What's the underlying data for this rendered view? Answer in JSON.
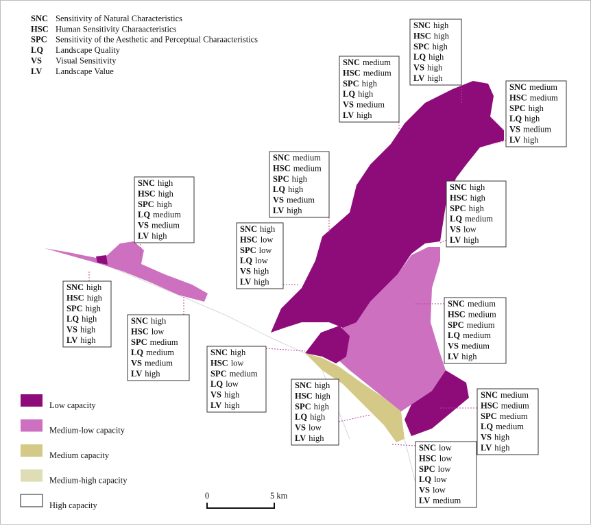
{
  "abbreviations": [
    {
      "abbr": "SNC",
      "text": "Sensitivity of Natural Characteristics"
    },
    {
      "abbr": "HSC",
      "text": "Human Sensitivity Charaacteristics"
    },
    {
      "abbr": "SPC",
      "text": "Sensitivity of the Aesthetic and Perceptual Charaacteristics"
    },
    {
      "abbr": "LQ",
      "text": "Landscape Quality"
    },
    {
      "abbr": "VS",
      "text": "Visual Sensitivity"
    },
    {
      "abbr": "LV",
      "text": "Landscape Value"
    }
  ],
  "boxes": [
    {
      "rows": [
        [
          "SNC",
          "high"
        ],
        [
          "HSC",
          "high"
        ],
        [
          "SPC",
          "high"
        ],
        [
          "LQ",
          "high"
        ],
        [
          "VS",
          "high"
        ],
        [
          "LV",
          "high"
        ]
      ]
    },
    {
      "rows": [
        [
          "SNC",
          "medium"
        ],
        [
          "HSC",
          "medium"
        ],
        [
          "SPC",
          "high"
        ],
        [
          "LQ",
          "high"
        ],
        [
          "VS",
          "medium"
        ],
        [
          "LV",
          "high"
        ]
      ]
    },
    {
      "rows": [
        [
          "SNC",
          "medium"
        ],
        [
          "HSC",
          "medium"
        ],
        [
          "SPC",
          "high"
        ],
        [
          "LQ",
          "high"
        ],
        [
          "VS",
          "medium"
        ],
        [
          "LV",
          "high"
        ]
      ]
    },
    {
      "rows": [
        [
          "SNC",
          "medium"
        ],
        [
          "HSC",
          "medium"
        ],
        [
          "SPC",
          "high"
        ],
        [
          "LQ",
          "high"
        ],
        [
          "VS",
          "medium"
        ],
        [
          "LV",
          "high"
        ]
      ]
    },
    {
      "rows": [
        [
          "SNC",
          "high"
        ],
        [
          "HSC",
          "high"
        ],
        [
          "SPC",
          "high"
        ],
        [
          "LQ",
          "medium"
        ],
        [
          "VS",
          "medium"
        ],
        [
          "LV",
          "high"
        ]
      ]
    },
    {
      "rows": [
        [
          "SNC",
          "high"
        ],
        [
          "HSC",
          "high"
        ],
        [
          "SPC",
          "high"
        ],
        [
          "LQ",
          "medium"
        ],
        [
          "VS",
          "low"
        ],
        [
          "LV",
          "high"
        ]
      ]
    },
    {
      "rows": [
        [
          "SNC",
          "high"
        ],
        [
          "HSC",
          "low"
        ],
        [
          "SPC",
          "low"
        ],
        [
          "LQ",
          "low"
        ],
        [
          "VS",
          "high"
        ],
        [
          "LV",
          "high"
        ]
      ]
    },
    {
      "rows": [
        [
          "SNC",
          "high"
        ],
        [
          "HSC",
          "high"
        ],
        [
          "SPC",
          "high"
        ],
        [
          "LQ",
          "high"
        ],
        [
          "VS",
          "high"
        ],
        [
          "LV",
          "high"
        ]
      ]
    },
    {
      "rows": [
        [
          "SNC",
          "high"
        ],
        [
          "HSC",
          "low"
        ],
        [
          "SPC",
          "medium"
        ],
        [
          "LQ",
          "medium"
        ],
        [
          "VS",
          "medium"
        ],
        [
          "LV",
          "high"
        ]
      ]
    },
    {
      "rows": [
        [
          "SNC",
          "medium"
        ],
        [
          "HSC",
          "medium"
        ],
        [
          "SPC",
          "medium"
        ],
        [
          "LQ",
          "medium"
        ],
        [
          "VS",
          "medium"
        ],
        [
          "LV",
          "high"
        ]
      ]
    },
    {
      "rows": [
        [
          "SNC",
          "high"
        ],
        [
          "HSC",
          "low"
        ],
        [
          "SPC",
          "medium"
        ],
        [
          "LQ",
          "low"
        ],
        [
          "VS",
          "high"
        ],
        [
          "LV",
          "high"
        ]
      ]
    },
    {
      "rows": [
        [
          "SNC",
          "high"
        ],
        [
          "HSC",
          "high"
        ],
        [
          "SPC",
          "high"
        ],
        [
          "LQ",
          "high"
        ],
        [
          "VS",
          "low"
        ],
        [
          "LV",
          "high"
        ]
      ]
    },
    {
      "rows": [
        [
          "SNC",
          "medium"
        ],
        [
          "HSC",
          "medium"
        ],
        [
          "SPC",
          "medium"
        ],
        [
          "LQ",
          "medium"
        ],
        [
          "VS",
          "high"
        ],
        [
          "LV",
          "high"
        ]
      ]
    },
    {
      "rows": [
        [
          "SNC",
          "low"
        ],
        [
          "HSC",
          "low"
        ],
        [
          "SPC",
          "low"
        ],
        [
          "LQ",
          "low"
        ],
        [
          "VS",
          "low"
        ],
        [
          "LV",
          "medium"
        ]
      ]
    }
  ],
  "legend": [
    {
      "label": "Low capacity",
      "color": "#8e0b7a"
    },
    {
      "label": "Medium-low capacity",
      "color": "#cd70c0"
    },
    {
      "label": "Medium capacity",
      "color": "#d5c987"
    },
    {
      "label": "Medium-high capacity",
      "color": "#deddb6"
    },
    {
      "label": "High capacity",
      "color": "#ffffff"
    }
  ],
  "scale_bar": {
    "start": "0",
    "end": "5 km"
  }
}
